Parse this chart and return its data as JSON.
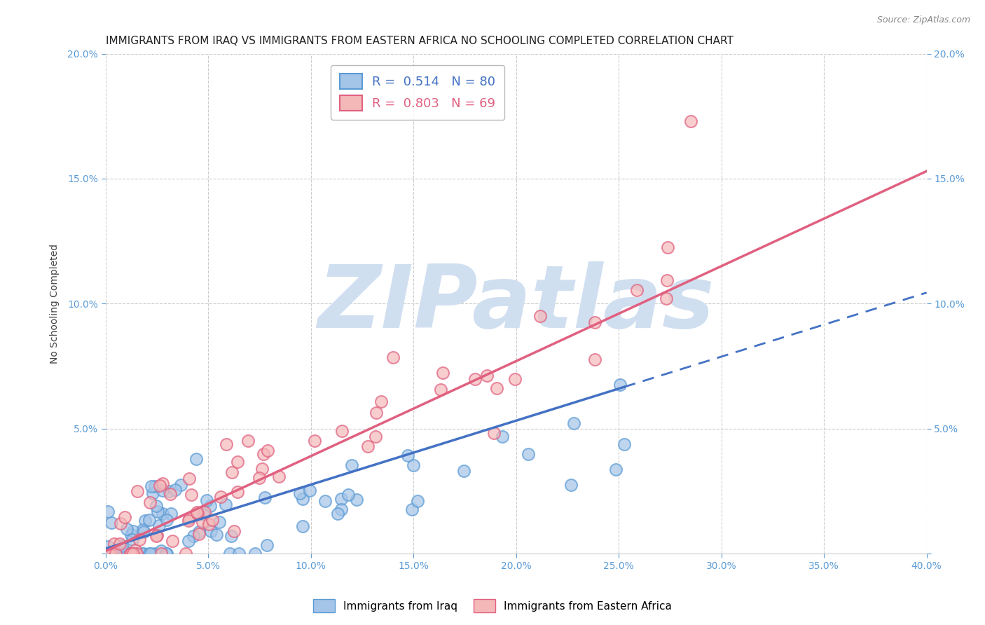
{
  "title": "IMMIGRANTS FROM IRAQ VS IMMIGRANTS FROM EASTERN AFRICA NO SCHOOLING COMPLETED CORRELATION CHART",
  "source": "Source: ZipAtlas.com",
  "ylabel": "No Schooling Completed",
  "xlim": [
    0.0,
    0.4
  ],
  "ylim": [
    0.0,
    0.2
  ],
  "xticks": [
    0.0,
    0.05,
    0.1,
    0.15,
    0.2,
    0.25,
    0.3,
    0.35,
    0.4
  ],
  "yticks": [
    0.0,
    0.05,
    0.1,
    0.15,
    0.2
  ],
  "color_iraq": "#a4c4e8",
  "color_iraq_edge": "#5b9bd5",
  "color_africa": "#f4b8b8",
  "color_africa_edge": "#e06080",
  "color_iraq_line": "#4472c4",
  "color_africa_line": "#e06080",
  "watermark": "ZIPatlas",
  "watermark_color": "#d0dff0",
  "background_color": "#ffffff",
  "title_fontsize": 11,
  "tick_fontsize": 10,
  "tick_color": "#5b9bd5",
  "ylabel_color": "#444444",
  "R_iraq": 0.514,
  "N_iraq": 80,
  "R_africa": 0.803,
  "N_africa": 69,
  "legend_iraq_r": "R = ",
  "legend_iraq_rval": "0.514",
  "legend_iraq_n": "N = ",
  "legend_iraq_nval": "80",
  "legend_africa_r": "R = ",
  "legend_africa_rval": "0.803",
  "legend_africa_n": "N = ",
  "legend_africa_nval": "69"
}
